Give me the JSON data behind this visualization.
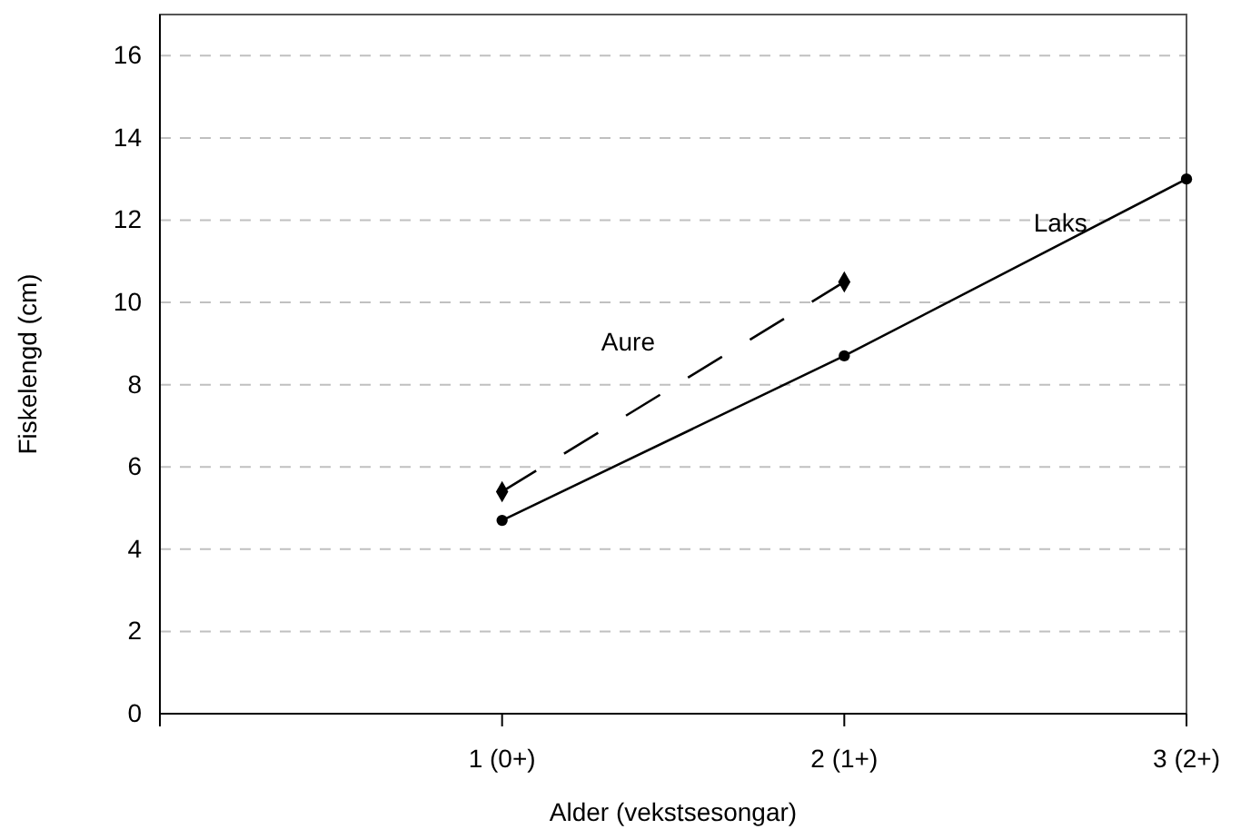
{
  "chart_data": {
    "type": "line",
    "xlabel": "Alder (vekstsesongar)",
    "ylabel": "Fiskelengd (cm)",
    "categories": [
      null,
      "1 (0+)",
      "2 (1+)",
      "3 (2+)"
    ],
    "ylim": [
      0,
      17
    ],
    "yticks": [
      0,
      2,
      4,
      6,
      8,
      10,
      12,
      14,
      16
    ],
    "grid": "y",
    "series": [
      {
        "name": "Aure",
        "color": "#000000",
        "values": [
          null,
          5.4,
          10.5,
          null
        ],
        "marker": "diamond",
        "line_style": "dashed"
      },
      {
        "name": "Laks",
        "color": "#000000",
        "values": [
          null,
          4.7,
          8.7,
          13.0
        ],
        "marker": "circle",
        "line_style": "solid"
      }
    ]
  }
}
